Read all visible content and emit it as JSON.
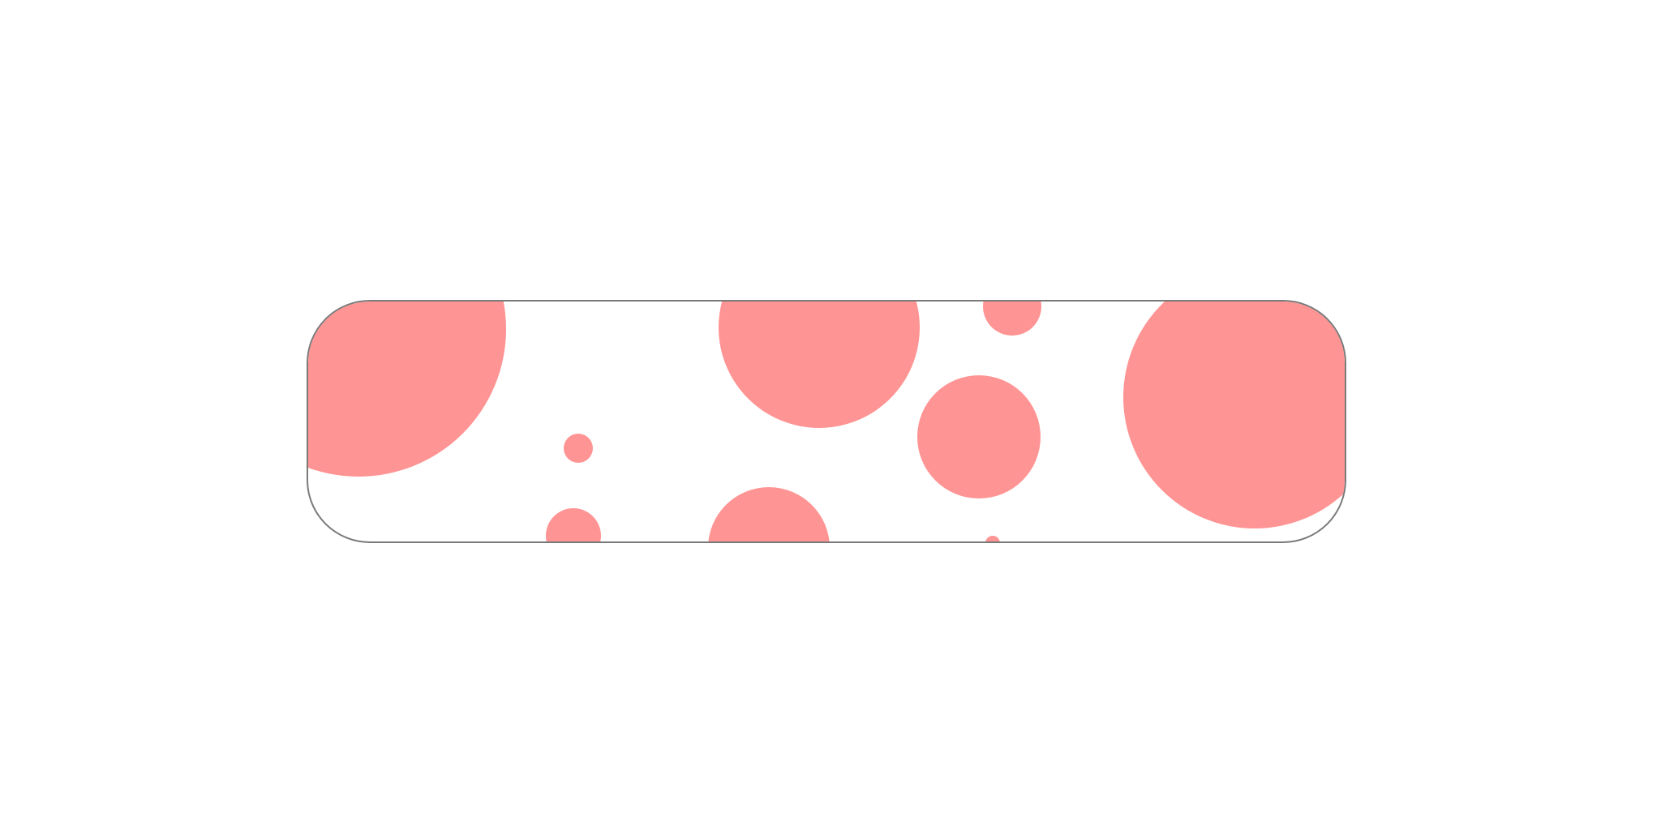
{
  "colors": {
    "background": "#ffffff",
    "panel_border": "#7a7a7a",
    "bubble": "#ff9494"
  }
}
